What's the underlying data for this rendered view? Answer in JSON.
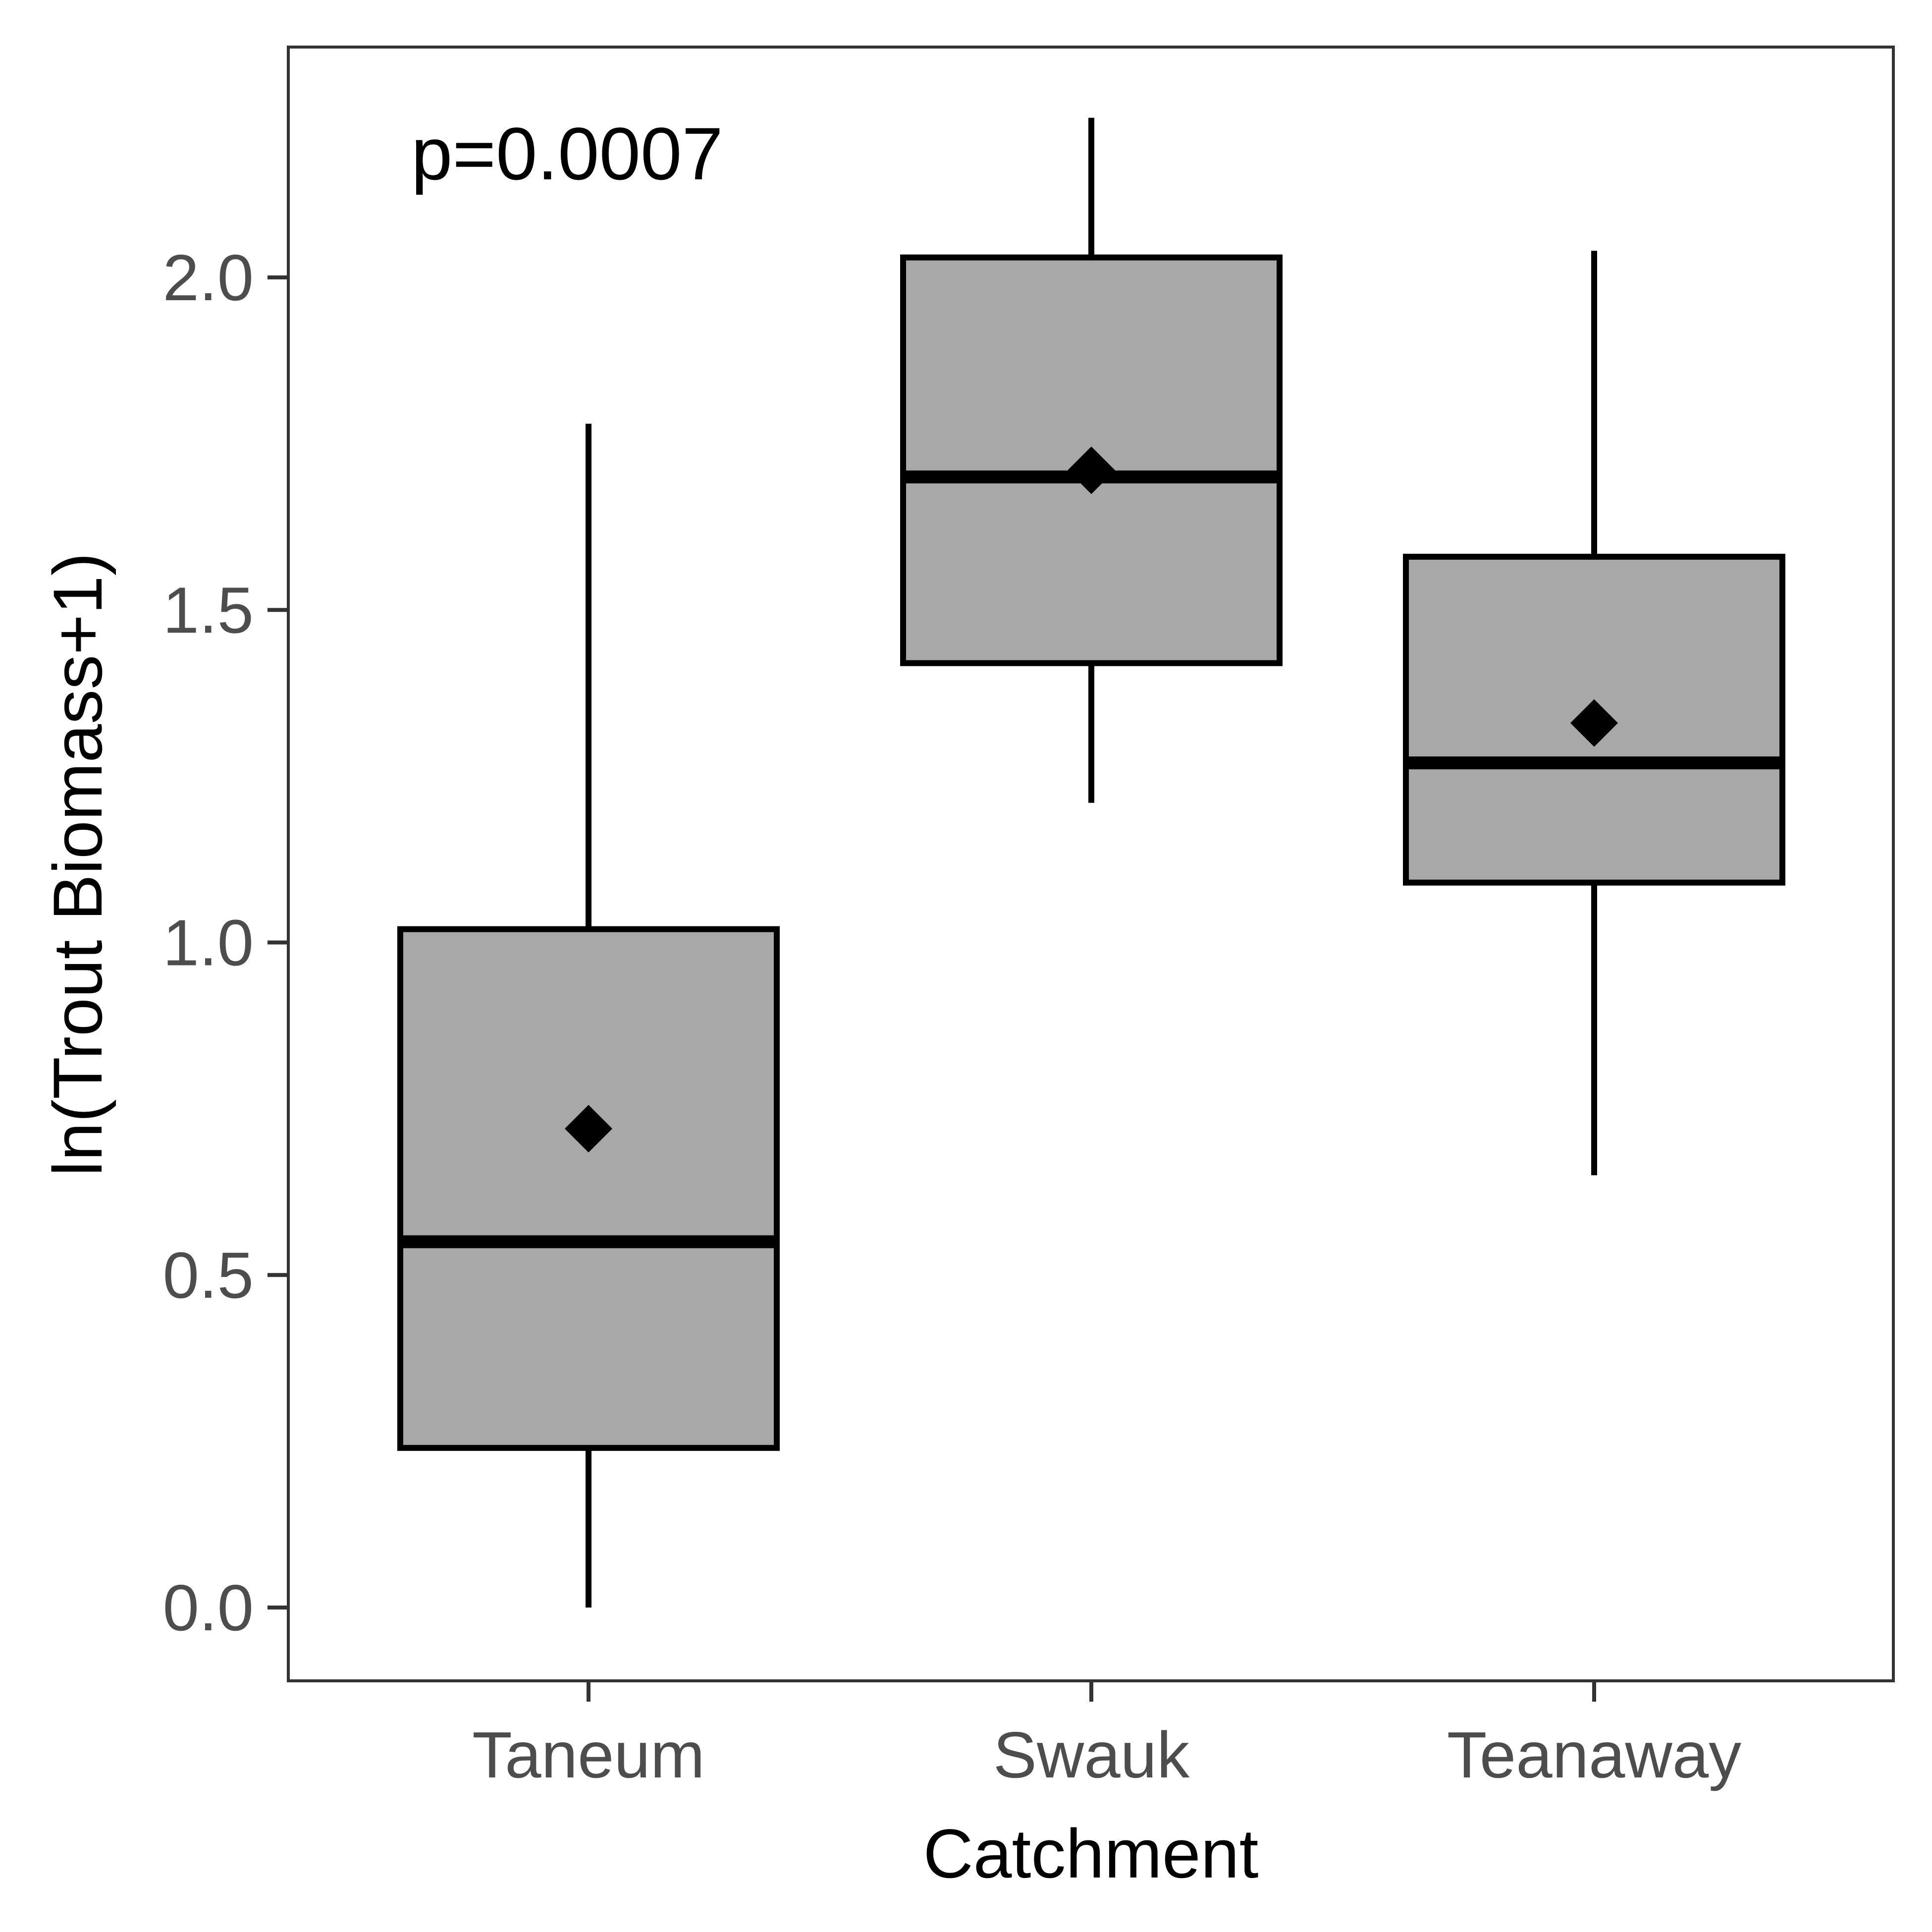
{
  "chart_data": {
    "type": "box",
    "xlabel": "Catchment",
    "ylabel": "ln(Trout Biomass+1)",
    "annotation": "p=0.0007",
    "categories": [
      "Taneum",
      "Swauk",
      "Teanaway"
    ],
    "boxes": [
      {
        "category": "Taneum",
        "whisker_low": 0.0,
        "q1": 0.24,
        "median": 0.55,
        "q3": 1.02,
        "whisker_high": 1.78,
        "mean": 0.72
      },
      {
        "category": "Swauk",
        "whisker_low": 1.21,
        "q1": 1.42,
        "median": 1.7,
        "q3": 2.03,
        "whisker_high": 2.24,
        "mean": 1.71
      },
      {
        "category": "Teanaway",
        "whisker_low": 0.65,
        "q1": 1.09,
        "median": 1.27,
        "q3": 1.58,
        "whisker_high": 2.04,
        "mean": 1.33
      }
    ],
    "yticks": [
      "0.0",
      "0.5",
      "1.0",
      "1.5",
      "2.0"
    ],
    "ylim": [
      -0.11,
      2.35
    ],
    "grid": false,
    "legend": "none",
    "colors": {
      "box_fill": "#a8a8a8",
      "stroke": "#000000",
      "panel_border": "#333333",
      "tick_text": "#4d4d4d"
    }
  }
}
